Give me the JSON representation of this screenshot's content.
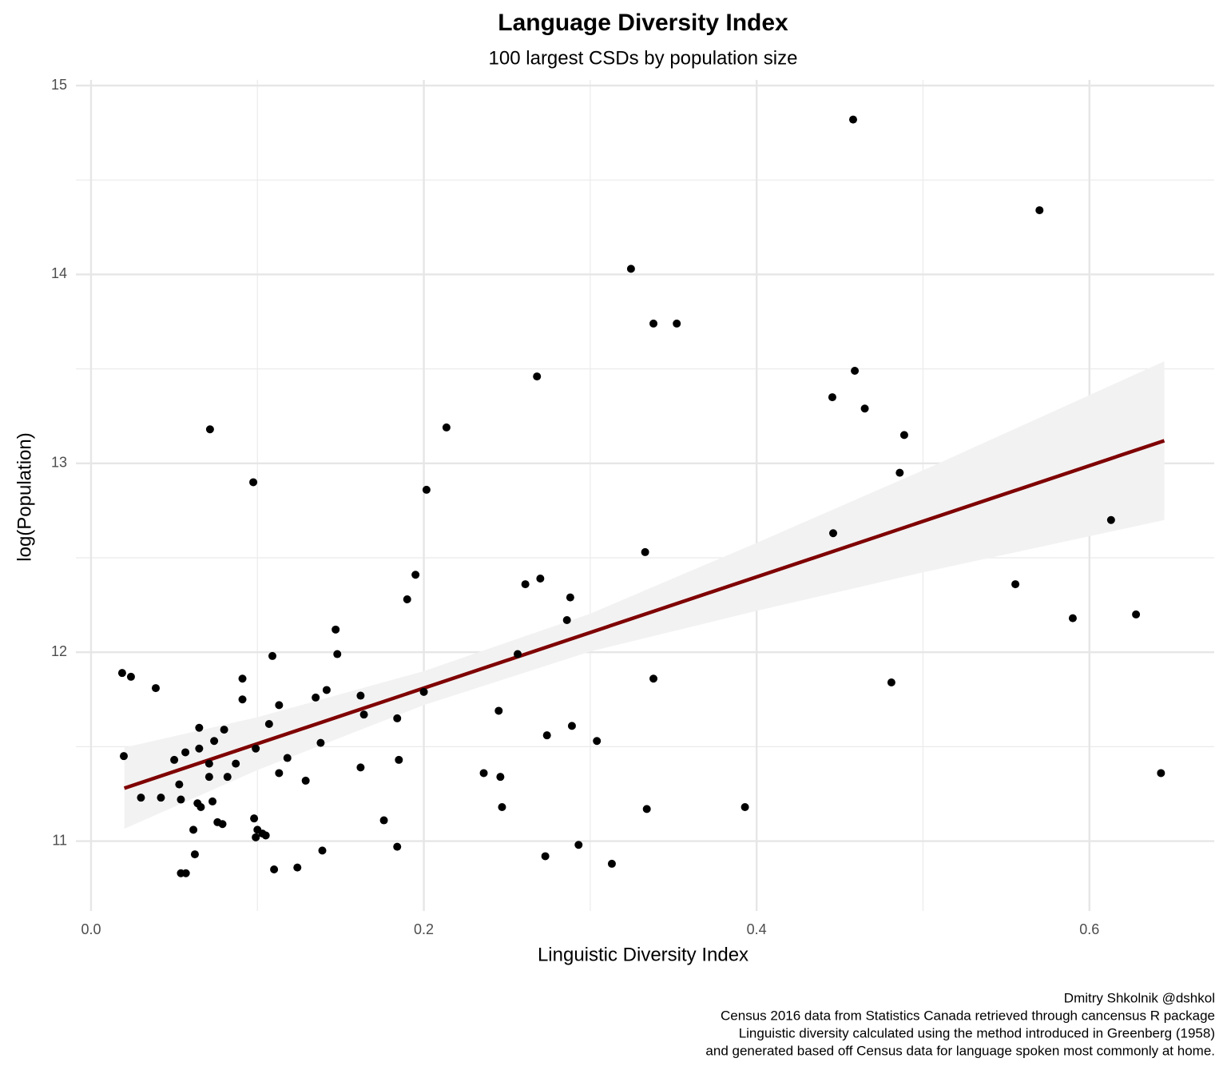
{
  "chart_data": {
    "type": "scatter",
    "title": "Language Diversity Index",
    "subtitle": "100 largest CSDs by population size",
    "x_label": "Linguistic Diversity Index",
    "y_label": "log(Population)",
    "caption": [
      "Dmitry Shkolnik @dshkol",
      "Census 2016 data from Statistics Canada retrieved through cancensus R package",
      "Linguistic diversity calculated using the method introduced in Greenberg (1958)",
      "and generated based off Census data for language spoken most commonly at home."
    ],
    "xlim": [
      -0.0091,
      0.675
    ],
    "ylim": [
      10.63,
      15.03
    ],
    "xticks": [
      {
        "value": 0,
        "label": "0.0"
      },
      0.2,
      0.4,
      0.6
    ],
    "yticks": [
      11,
      12,
      13,
      14,
      15
    ],
    "xminor": [
      0.1,
      0.3,
      0.5
    ],
    "yminor": [
      11.5,
      12.5,
      13.5,
      14.5
    ],
    "grid": true,
    "points": {
      "color": "#000000",
      "x": [
        0.458,
        0.57,
        0.3245,
        0.338,
        0.352,
        0.268,
        0.459,
        0.4455,
        0.465,
        0.0715,
        0.2136,
        0.4887,
        0.486,
        0.0975,
        0.2016,
        0.613,
        0.446,
        0.333,
        0.195,
        0.27,
        0.261,
        0.5555,
        0.19,
        0.288,
        0.286,
        0.59,
        0.628,
        0.147,
        0.2564,
        0.148,
        0.109,
        0.0187,
        0.024,
        0.091,
        0.338,
        0.481,
        0.0389,
        0.1416,
        0.2,
        0.162,
        0.135,
        0.091,
        0.113,
        0.245,
        0.164,
        0.184,
        0.107,
        0.289,
        0.065,
        0.08,
        0.274,
        0.304,
        0.074,
        0.138,
        0.065,
        0.099,
        0.0567,
        0.0197,
        0.118,
        0.05,
        0.185,
        0.071,
        0.087,
        0.162,
        0.236,
        0.113,
        0.643,
        0.246,
        0.071,
        0.082,
        0.129,
        0.053,
        0.03,
        0.042,
        0.054,
        0.073,
        0.064,
        0.066,
        0.247,
        0.393,
        0.334,
        0.098,
        0.176,
        0.076,
        0.079,
        0.0615,
        0.1,
        0.103,
        0.105,
        0.099,
        0.293,
        0.184,
        0.139,
        0.0624,
        0.273,
        0.313,
        0.124,
        0.11,
        0.057,
        0.054
      ],
      "y": [
        14.82,
        14.34,
        14.03,
        13.74,
        13.74,
        13.46,
        13.49,
        13.35,
        13.29,
        13.18,
        13.19,
        13.15,
        12.95,
        12.9,
        12.86,
        12.7,
        12.63,
        12.53,
        12.41,
        12.39,
        12.36,
        12.36,
        12.28,
        12.29,
        12.17,
        12.18,
        12.2,
        12.12,
        11.99,
        11.99,
        11.98,
        11.89,
        11.87,
        11.86,
        11.86,
        11.84,
        11.81,
        11.8,
        11.79,
        11.77,
        11.76,
        11.75,
        11.72,
        11.69,
        11.67,
        11.65,
        11.62,
        11.61,
        11.6,
        11.59,
        11.56,
        11.53,
        11.53,
        11.52,
        11.49,
        11.49,
        11.47,
        11.45,
        11.44,
        11.43,
        11.43,
        11.41,
        11.41,
        11.39,
        11.36,
        11.36,
        11.36,
        11.34,
        11.34,
        11.34,
        11.32,
        11.3,
        11.23,
        11.23,
        11.22,
        11.21,
        11.2,
        11.18,
        11.18,
        11.18,
        11.17,
        11.12,
        11.11,
        11.1,
        11.09,
        11.06,
        11.06,
        11.04,
        11.03,
        11.02,
        10.98,
        10.97,
        10.95,
        10.93,
        10.92,
        10.88,
        10.86,
        10.85,
        10.83,
        10.83
      ]
    },
    "trend": {
      "color": "#7f0000",
      "x": [
        0.02,
        0.645
      ],
      "y": [
        11.28,
        13.12
      ]
    },
    "band": {
      "color": "#f2f2f2",
      "x": [
        0.02,
        0.1,
        0.2,
        0.3,
        0.4,
        0.5,
        0.645
      ],
      "lower": [
        11.065,
        11.376,
        11.72,
        12.004,
        12.219,
        12.423,
        12.7
      ],
      "upper": [
        11.495,
        11.656,
        11.9,
        12.204,
        12.579,
        12.963,
        13.54
      ]
    }
  }
}
